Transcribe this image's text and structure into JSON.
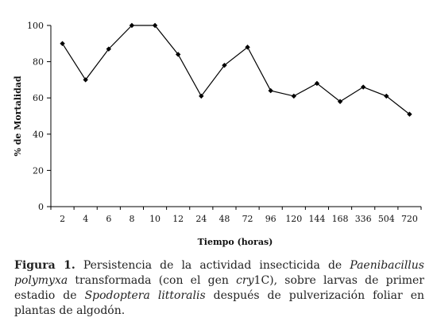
{
  "chart_data": {
    "type": "line",
    "x_categories": [
      "2",
      "4",
      "6",
      "8",
      "10",
      "12",
      "24",
      "48",
      "72",
      "96",
      "120",
      "144",
      "168",
      "336",
      "504",
      "720"
    ],
    "values": [
      90,
      70,
      87,
      100,
      100,
      84,
      61,
      78,
      88,
      64,
      61,
      68,
      58,
      66,
      61,
      51
    ],
    "ylim": [
      0,
      100
    ],
    "yticks": [
      "0",
      "20",
      "40",
      "60",
      "80",
      "100"
    ],
    "xlabel": "Tiempo (horas)",
    "ylabel": "% de Mortalidad",
    "grid": false,
    "legend": "none",
    "line_color": "#000000"
  },
  "caption": {
    "label": "Figura 1.",
    "p1": " Persistencia de la actividad insecticida de ",
    "organism": "Paenibacillus polymyxa",
    "p2": " transformada (con el gen ",
    "gene": "cry",
    "gene_suffix": "1C), sobre larvas de primer estadio de ",
    "insect": "Spodoptera littoralis",
    "p3": " después de pulverización foliar en plantas de algodón."
  }
}
